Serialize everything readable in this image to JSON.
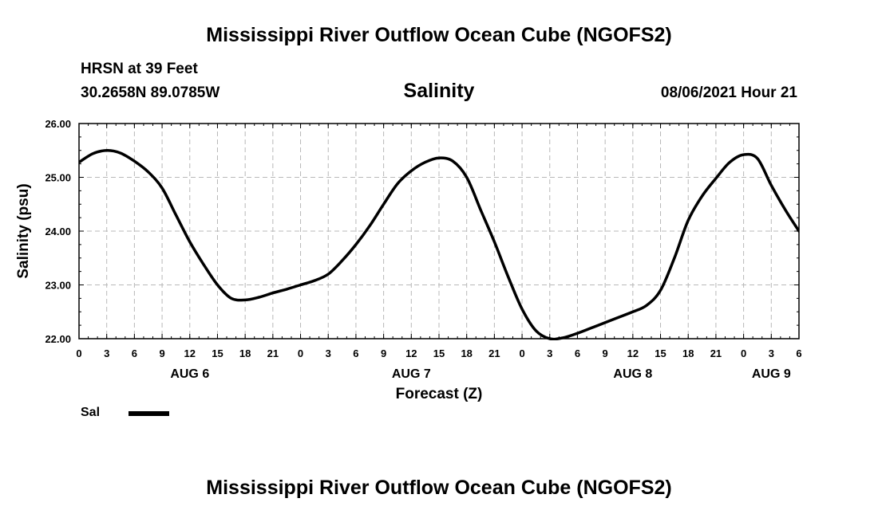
{
  "header": {
    "title": "Mississippi River Outflow Ocean Cube (NGOFS2)",
    "station": "HRSN at 39 Feet",
    "coords": "30.2658N  89.0785W",
    "chart_title": "Salinity",
    "timestamp": "08/06/2021 Hour 21"
  },
  "footer": {
    "title": "Mississippi River Outflow Ocean Cube (NGOFS2)"
  },
  "legend": {
    "label": "Sal"
  },
  "chart_data": {
    "type": "line",
    "title": "Salinity",
    "xlabel": "Forecast (Z)",
    "ylabel": "Salinity (psu)",
    "x_unit": "hours",
    "xlim": [
      0,
      78
    ],
    "ylim": [
      22.0,
      26.0
    ],
    "y_ticks": [
      "22.00",
      "23.00",
      "24.00",
      "25.00",
      "26.00"
    ],
    "y_tick_values": [
      22,
      23,
      24,
      25,
      26
    ],
    "x_ticks": [
      "0",
      "3",
      "6",
      "9",
      "12",
      "15",
      "18",
      "21",
      "0",
      "3",
      "6",
      "9",
      "12",
      "15",
      "18",
      "21",
      "0",
      "3",
      "6",
      "9",
      "12",
      "15",
      "18",
      "21",
      "0",
      "3",
      "6"
    ],
    "x_tick_values": [
      0,
      3,
      6,
      9,
      12,
      15,
      18,
      21,
      24,
      27,
      30,
      33,
      36,
      39,
      42,
      45,
      48,
      51,
      54,
      57,
      60,
      63,
      66,
      69,
      72,
      75,
      78
    ],
    "day_labels": [
      {
        "label": "AUG 6",
        "x": 12
      },
      {
        "label": "AUG 7",
        "x": 36
      },
      {
        "label": "AUG 8",
        "x": 60
      },
      {
        "label": "AUG 9",
        "x": 75
      }
    ],
    "grid": true,
    "legend_position": "bottom-left",
    "series": [
      {
        "name": "Sal",
        "color": "#000000",
        "x": [
          0,
          1.5,
          3,
          4.5,
          6,
          7.5,
          9,
          10.5,
          12,
          13.5,
          15,
          16.5,
          18,
          19.5,
          21,
          22.5,
          24,
          25.5,
          27,
          28.5,
          30,
          31.5,
          33,
          34.5,
          36,
          37.5,
          39,
          40.5,
          42,
          43.5,
          45,
          46.5,
          48,
          49.5,
          51,
          52.5,
          54,
          55.5,
          57,
          58.5,
          60,
          61.5,
          63,
          64.5,
          66,
          67.5,
          69,
          70.5,
          72,
          73.5,
          75,
          76.5,
          78
        ],
        "y": [
          25.28,
          25.44,
          25.5,
          25.45,
          25.3,
          25.1,
          24.8,
          24.3,
          23.8,
          23.38,
          23.0,
          22.75,
          22.72,
          22.77,
          22.85,
          22.92,
          23.0,
          23.08,
          23.2,
          23.45,
          23.75,
          24.1,
          24.5,
          24.88,
          25.12,
          25.28,
          25.36,
          25.3,
          25.0,
          24.4,
          23.8,
          23.15,
          22.55,
          22.15,
          22.0,
          22.02,
          22.1,
          22.2,
          22.3,
          22.4,
          22.5,
          22.62,
          22.9,
          23.5,
          24.2,
          24.65,
          24.98,
          25.28,
          25.42,
          25.35,
          24.85,
          24.4,
          24.0
        ]
      }
    ]
  }
}
